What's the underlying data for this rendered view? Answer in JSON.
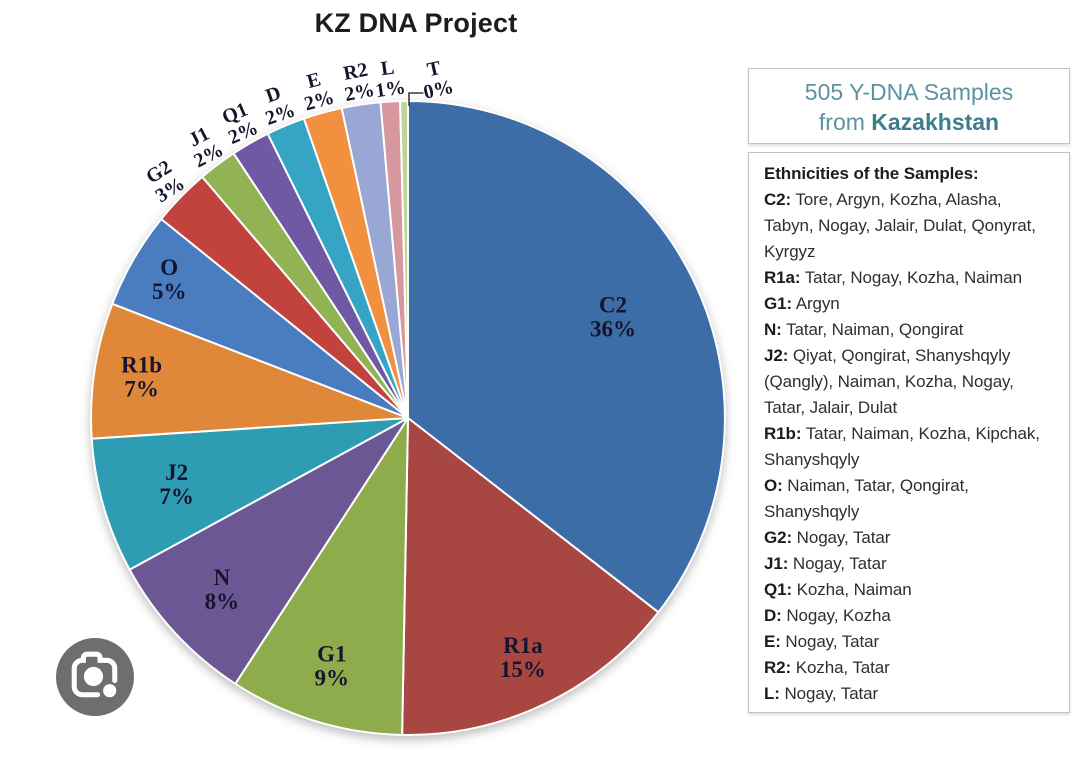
{
  "title": "KZ DNA Project",
  "chart_data": {
    "type": "pie",
    "title": "KZ DNA Project",
    "units": "percent of 505 Y-DNA samples",
    "start_angle": "top",
    "direction": "clockwise",
    "legend_position": "none",
    "slices": [
      {
        "name": "C2",
        "pct": "36%",
        "value": 36,
        "color": "#3D6DA6",
        "inside": true,
        "lr": 0.72
      },
      {
        "name": "R1a",
        "pct": "15%",
        "value": 15,
        "color": "#A84641",
        "inside": true,
        "lr": 0.84
      },
      {
        "name": "G1",
        "pct": "9%",
        "value": 9,
        "color": "#8EAC4B",
        "inside": true,
        "lr": 0.82
      },
      {
        "name": "N",
        "pct": "8%",
        "value": 8,
        "color": "#6C5795",
        "inside": true,
        "lr": 0.8
      },
      {
        "name": "J2",
        "pct": "7%",
        "value": 7,
        "color": "#2E9DB3",
        "inside": true,
        "lr": 0.76
      },
      {
        "name": "R1b",
        "pct": "7%",
        "value": 7,
        "color": "#E0883A",
        "inside": true,
        "lr": 0.85
      },
      {
        "name": "O",
        "pct": "5%",
        "value": 5,
        "color": "#4A7CC0",
        "inside": true,
        "lr": 0.87
      },
      {
        "name": "G2",
        "pct": "3%",
        "value": 3,
        "color": "#C2423E",
        "inside": false
      },
      {
        "name": "J1",
        "pct": "2%",
        "value": 2,
        "color": "#92B354",
        "inside": false
      },
      {
        "name": "Q1",
        "pct": "2%",
        "value": 2,
        "color": "#7059A4",
        "inside": false
      },
      {
        "name": "D",
        "pct": "2%",
        "value": 2,
        "color": "#36A5C5",
        "inside": false
      },
      {
        "name": "E",
        "pct": "2%",
        "value": 2,
        "color": "#F19140",
        "inside": false
      },
      {
        "name": "R2",
        "pct": "2%",
        "value": 2,
        "color": "#99A7D4",
        "inside": false
      },
      {
        "name": "L",
        "pct": "1%",
        "value": 1,
        "color": "#D6979E",
        "inside": false
      },
      {
        "name": "T",
        "pct": "0%",
        "value": 0,
        "draw": 0.4,
        "color": "#BED59A",
        "inside": false,
        "leader": true
      }
    ]
  },
  "samples_box": {
    "line1": "505 Y-DNA Samples",
    "line2_prefix": "from ",
    "line2_bold": "Kazakhstan"
  },
  "ethnicities": {
    "heading": "Ethnicities of the Samples:",
    "entries": [
      {
        "label": "C2:",
        "text": " Tore, Argyn, Kozha, Alasha, Tabyn, Nogay, Jalair, Dulat, Qonyrat, Kyrgyz"
      },
      {
        "label": "R1a:",
        "text": "Tatar, Nogay, Kozha, Naiman"
      },
      {
        "label": "G1:",
        "text": "Argyn"
      },
      {
        "label": "N:",
        "text": " Tatar, Naiman, Qongirat"
      },
      {
        "label": "J2:",
        "text": "Qiyat, Qongirat, Shanyshqyly (Qangly), Naiman, Kozha, Nogay, Tatar, Jalair, Dulat"
      },
      {
        "label": "R1b:",
        "text": "Tatar, Naiman, Kozha, Kipchak, Shanyshqyly"
      },
      {
        "label": "O:",
        "text": "Naiman, Tatar, Qongirat, Shanyshqyly"
      },
      {
        "label": "G2:",
        "text": "Nogay, Tatar"
      },
      {
        "label": "J1:",
        "text": "Nogay, Tatar"
      },
      {
        "label": "Q1:",
        "text": "Kozha, Naiman"
      },
      {
        "label": "D:",
        "text": "Nogay, Kozha"
      },
      {
        "label": "E:",
        "text": "Nogay, Tatar"
      },
      {
        "label": "R2:",
        "text": "Kozha, Tatar"
      },
      {
        "label": "L:",
        "text": "Nogay, Tatar"
      }
    ]
  },
  "lens_button": {
    "icon": "camera-lens-icon"
  },
  "colors": {
    "box_border": "#C3C3C3",
    "samples_text": "#5C93A2",
    "samples_bold": "#3C7E8E",
    "body_text": "#2F2F2F",
    "pie_label_text": "#15152E",
    "lens_circle": "#6E6E6E",
    "lens_glyph": "#FFFFFF"
  }
}
